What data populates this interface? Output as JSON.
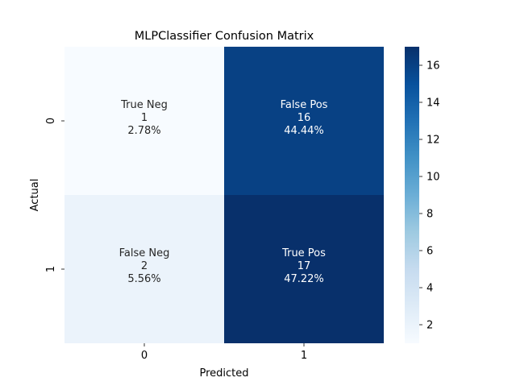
{
  "chart_data": {
    "type": "heatmap",
    "title": "MLPClassifier Confusion Matrix",
    "xlabel": "Predicted",
    "ylabel": "Actual",
    "x_categories": [
      "0",
      "1"
    ],
    "y_categories": [
      "0",
      "1"
    ],
    "cells": [
      [
        {
          "label": "True Neg",
          "count": 1,
          "percent": "2.78%"
        },
        {
          "label": "False Pos",
          "count": 16,
          "percent": "44.44%"
        }
      ],
      [
        {
          "label": "False Neg",
          "count": 2,
          "percent": "5.56%"
        },
        {
          "label": "True Pos",
          "count": 17,
          "percent": "47.22%"
        }
      ]
    ],
    "colormap": "Blues",
    "colorbar": {
      "range": [
        1,
        17
      ],
      "ticks": [
        2,
        4,
        6,
        8,
        10,
        12,
        14,
        16
      ]
    }
  }
}
